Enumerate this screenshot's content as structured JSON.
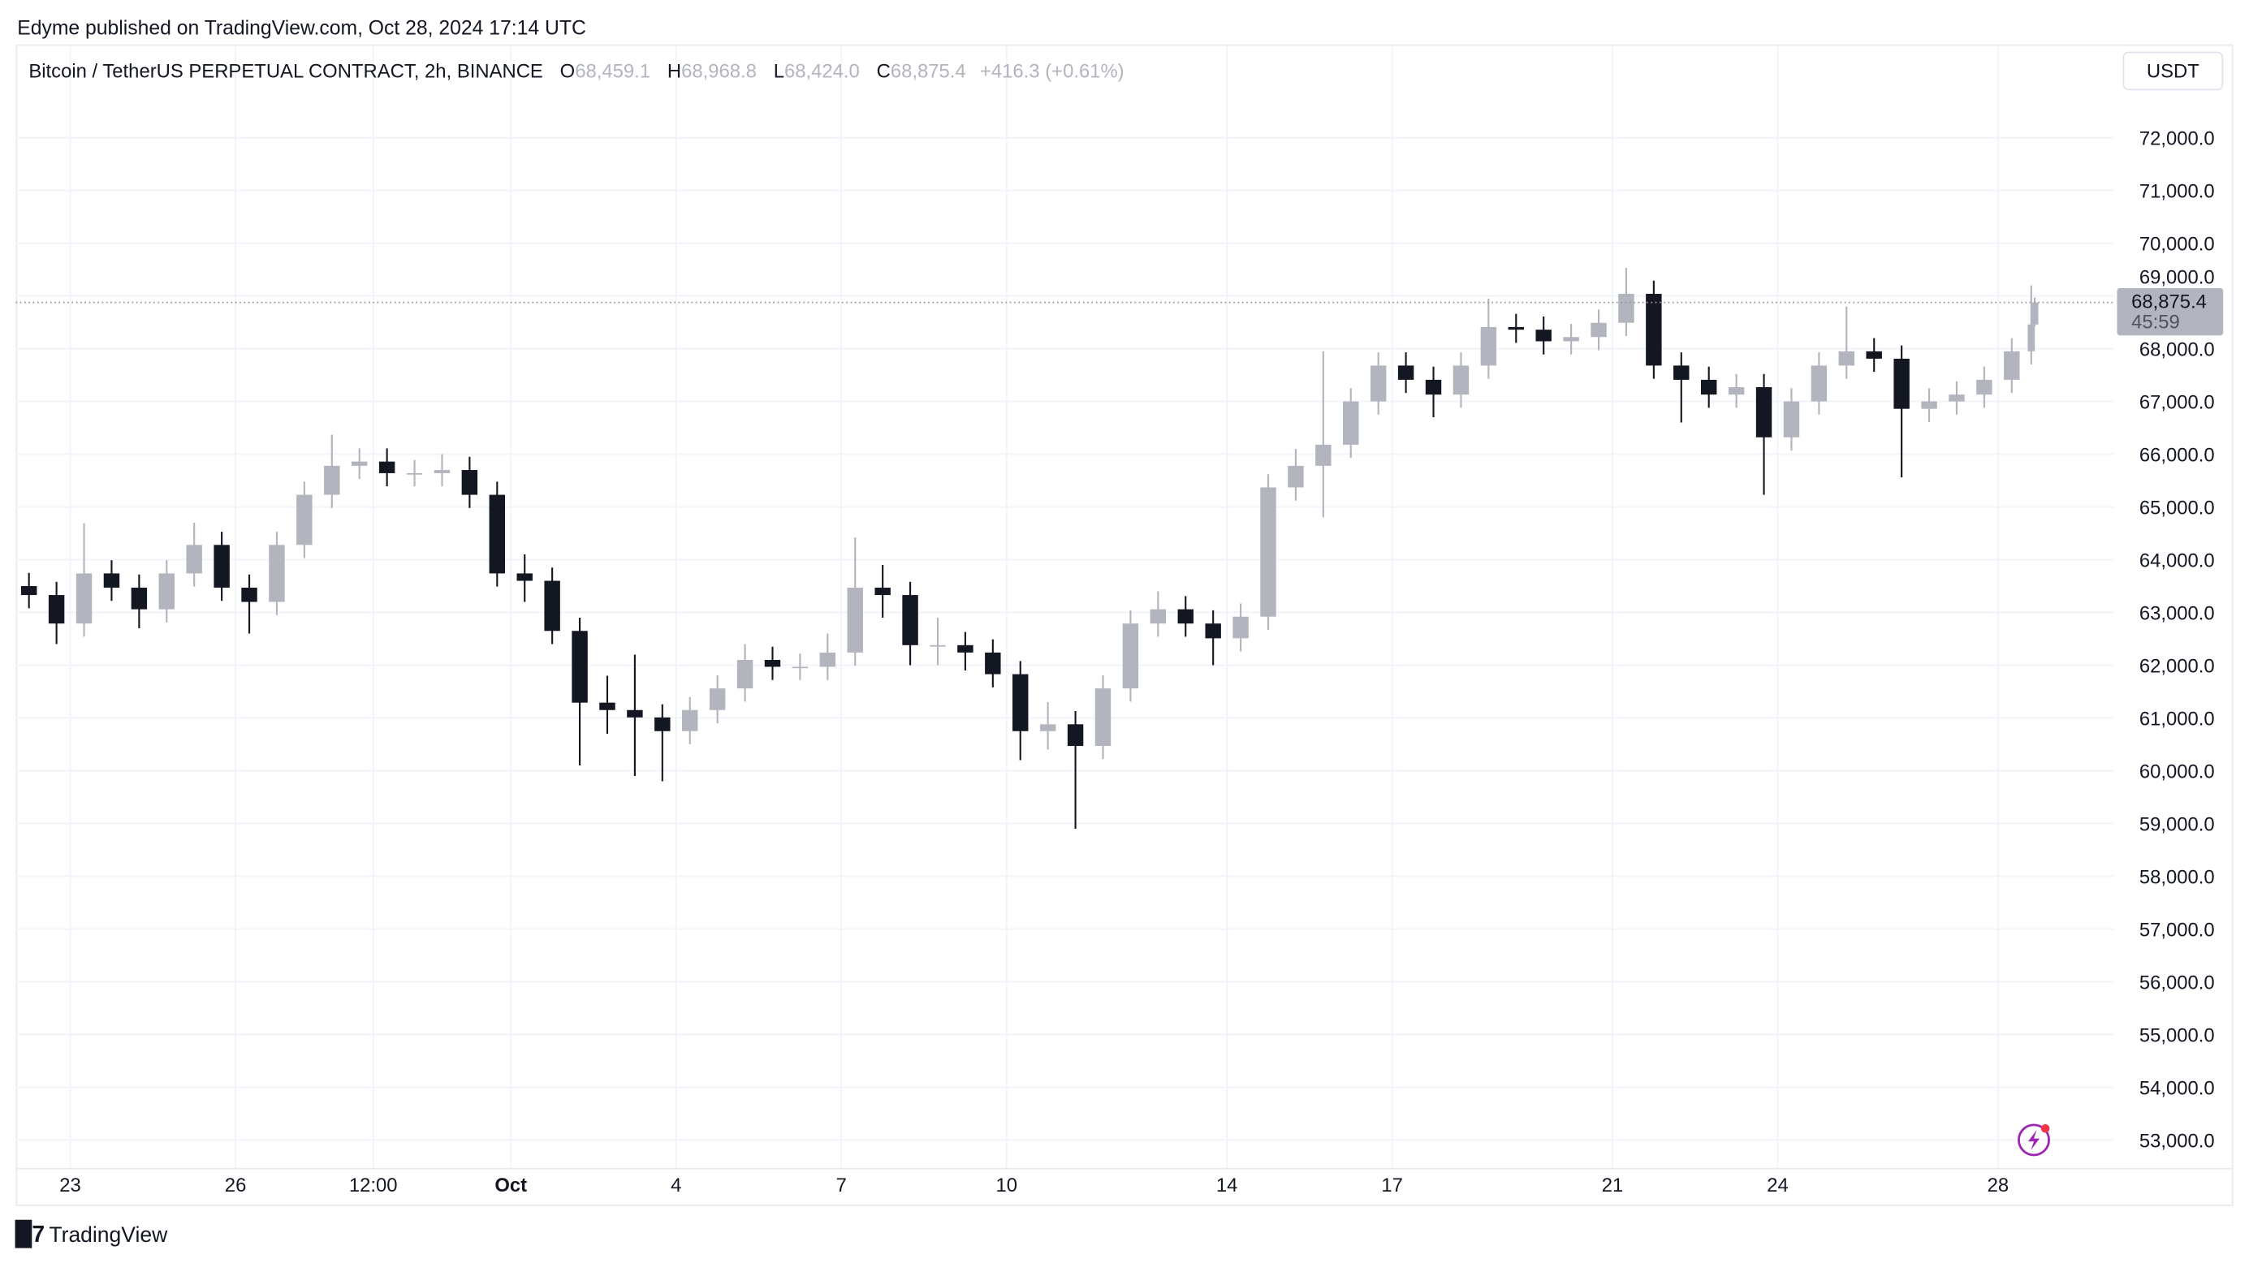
{
  "published": "Edyme published on TradingView.com, Oct 28, 2024 17:14 UTC",
  "legend": {
    "symbol": "Bitcoin / TetherUS PERPETUAL CONTRACT, 2h, BINANCE",
    "o_label": "O",
    "o": "68,459.1",
    "h_label": "H",
    "h": "68,968.8",
    "l_label": "L",
    "l": "68,424.0",
    "c_label": "C",
    "c": "68,875.4",
    "change": "+416.3 (+0.61%)"
  },
  "currency_button": "USDT",
  "last_price_label": {
    "price": "68,875.4",
    "countdown": "45:59"
  },
  "footer_brand": "TradingView",
  "icons": {
    "logo": "tradingview-logo-icon",
    "lightning": "lightning-icon"
  },
  "colors": {
    "up": "#b2b5be",
    "down": "#131722",
    "price_tag": "#b2b5be",
    "grid": "#f0f3fa",
    "lightning": "#9c27b0",
    "alert_dot": "#f23645"
  },
  "chart_data": {
    "type": "candlestick",
    "title": "Bitcoin / TetherUS PERPETUAL CONTRACT, 2h, BINANCE",
    "interval": "2h",
    "note_values_approximate": true,
    "y_axis": {
      "side": "right",
      "range": [
        52600,
        73000
      ],
      "ticks": [
        "72,000.0",
        "71,000.0",
        "70,000.0",
        "69,000.0",
        "68,000.0",
        "67,000.0",
        "66,000.0",
        "65,000.0",
        "64,000.0",
        "63,000.0",
        "62,000.0",
        "61,000.0",
        "60,000.0",
        "59,000.0",
        "58,000.0",
        "57,000.0",
        "56,000.0",
        "55,000.0",
        "54,000.0",
        "53,000.0"
      ],
      "tick_values": [
        72000,
        71000,
        70000,
        69000,
        68000,
        67000,
        66000,
        65000,
        64000,
        63000,
        62000,
        61000,
        60000,
        59000,
        58000,
        57000,
        56000,
        55000,
        54000,
        53000
      ]
    },
    "x_axis": {
      "ticks": [
        {
          "label": "23",
          "t": "2024-09-23T00:00",
          "bold": false
        },
        {
          "label": "26",
          "t": "2024-09-26T00:00",
          "bold": false
        },
        {
          "label": "12:00",
          "t": "2024-09-28T12:00",
          "bold": false
        },
        {
          "label": "Oct",
          "t": "2024-10-01T00:00",
          "bold": true
        },
        {
          "label": "4",
          "t": "2024-10-04T00:00",
          "bold": false
        },
        {
          "label": "7",
          "t": "2024-10-07T00:00",
          "bold": false
        },
        {
          "label": "10",
          "t": "2024-10-10T00:00",
          "bold": false
        },
        {
          "label": "14",
          "t": "2024-10-14T00:00",
          "bold": false
        },
        {
          "label": "17",
          "t": "2024-10-17T00:00",
          "bold": false
        },
        {
          "label": "21",
          "t": "2024-10-21T00:00",
          "bold": false
        },
        {
          "label": "24",
          "t": "2024-10-24T00:00",
          "bold": false
        },
        {
          "label": "28",
          "t": "2024-10-28T00:00",
          "bold": false
        }
      ]
    },
    "grid": true,
    "last_price": 68875.4,
    "candles_columns": [
      "time",
      "open",
      "high",
      "low",
      "close"
    ],
    "candles": [
      [
        "2024-09-22T00:00",
        63500,
        63750,
        63080,
        63330
      ],
      [
        "2024-09-22T12:00",
        63330,
        63580,
        62400,
        62790
      ],
      [
        "2024-09-23T00:00",
        62790,
        64690,
        62540,
        63740
      ],
      [
        "2024-09-23T12:00",
        63740,
        63990,
        63220,
        63470
      ],
      [
        "2024-09-24T00:00",
        63470,
        63720,
        62700,
        63060
      ],
      [
        "2024-09-24T12:00",
        63060,
        63990,
        62810,
        63740
      ],
      [
        "2024-09-25T00:00",
        63740,
        64700,
        63490,
        64280
      ],
      [
        "2024-09-25T12:00",
        64280,
        64530,
        63220,
        63470
      ],
      [
        "2024-09-26T00:00",
        63470,
        63720,
        62600,
        63200
      ],
      [
        "2024-09-26T12:00",
        63200,
        64530,
        62950,
        64280
      ],
      [
        "2024-09-27T00:00",
        64280,
        65480,
        64030,
        65230
      ],
      [
        "2024-09-27T12:00",
        65230,
        66370,
        64980,
        65780
      ],
      [
        "2024-09-28T00:00",
        65780,
        66110,
        65530,
        65860
      ],
      [
        "2024-09-28T12:00",
        65860,
        66110,
        65390,
        65640
      ],
      [
        "2024-09-29T00:00",
        65640,
        65890,
        65390,
        65640
      ],
      [
        "2024-09-29T12:00",
        65640,
        66000,
        65390,
        65700
      ],
      [
        "2024-09-30T00:00",
        65700,
        65950,
        64980,
        65230
      ],
      [
        "2024-09-30T12:00",
        65230,
        65480,
        63490,
        63740
      ],
      [
        "2024-10-01T00:00",
        63740,
        64100,
        63200,
        63600
      ],
      [
        "2024-10-01T12:00",
        63600,
        63850,
        62400,
        62650
      ],
      [
        "2024-10-02T00:00",
        62650,
        62900,
        60100,
        61290
      ],
      [
        "2024-10-02T12:00",
        61290,
        61800,
        60700,
        61150
      ],
      [
        "2024-10-03T00:00",
        61150,
        62200,
        59900,
        61010
      ],
      [
        "2024-10-03T12:00",
        61010,
        61260,
        59800,
        60750
      ],
      [
        "2024-10-04T00:00",
        60750,
        61400,
        60500,
        61150
      ],
      [
        "2024-10-04T12:00",
        61150,
        61810,
        60900,
        61560
      ],
      [
        "2024-10-05T00:00",
        61560,
        62400,
        61310,
        62100
      ],
      [
        "2024-10-05T12:00",
        62100,
        62350,
        61720,
        61970
      ],
      [
        "2024-10-06T00:00",
        61970,
        62220,
        61720,
        61970
      ],
      [
        "2024-10-06T12:00",
        61970,
        62600,
        61720,
        62240
      ],
      [
        "2024-10-07T00:00",
        62240,
        64420,
        61990,
        63470
      ],
      [
        "2024-10-07T12:00",
        63470,
        63900,
        62900,
        63330
      ],
      [
        "2024-10-08T00:00",
        63330,
        63580,
        62000,
        62380
      ],
      [
        "2024-10-08T12:00",
        62380,
        62900,
        62000,
        62380
      ],
      [
        "2024-10-09T00:00",
        62380,
        62630,
        61900,
        62240
      ],
      [
        "2024-10-09T12:00",
        62240,
        62490,
        61580,
        61830
      ],
      [
        "2024-10-10T00:00",
        61830,
        62080,
        60200,
        60750
      ],
      [
        "2024-10-10T12:00",
        60750,
        61300,
        60400,
        60880
      ],
      [
        "2024-10-11T00:00",
        60880,
        61130,
        58900,
        60470
      ],
      [
        "2024-10-11T12:00",
        60470,
        61810,
        60220,
        61560
      ],
      [
        "2024-10-12T00:00",
        61560,
        63040,
        61310,
        62790
      ],
      [
        "2024-10-12T12:00",
        62790,
        63400,
        62540,
        63060
      ],
      [
        "2024-10-13T00:00",
        63060,
        63310,
        62540,
        62790
      ],
      [
        "2024-10-13T12:00",
        62790,
        63040,
        62000,
        62510
      ],
      [
        "2024-10-14T00:00",
        62510,
        63170,
        62260,
        62920
      ],
      [
        "2024-10-14T12:00",
        62920,
        65620,
        62670,
        65370
      ],
      [
        "2024-10-15T00:00",
        65370,
        66100,
        65120,
        65780
      ],
      [
        "2024-10-15T12:00",
        65780,
        67950,
        64800,
        66180
      ],
      [
        "2024-10-16T00:00",
        66180,
        67250,
        65930,
        67000
      ],
      [
        "2024-10-16T12:00",
        67000,
        67930,
        66750,
        67680
      ],
      [
        "2024-10-17T00:00",
        67680,
        67930,
        67160,
        67410
      ],
      [
        "2024-10-17T12:00",
        67410,
        67660,
        66700,
        67130
      ],
      [
        "2024-10-18T00:00",
        67130,
        67930,
        66880,
        67680
      ],
      [
        "2024-10-18T12:00",
        67680,
        68950,
        67430,
        68410
      ],
      [
        "2024-10-19T00:00",
        68410,
        68660,
        68110,
        68360
      ],
      [
        "2024-10-19T12:00",
        68360,
        68610,
        67890,
        68140
      ],
      [
        "2024-10-20T00:00",
        68140,
        68470,
        67890,
        68220
      ],
      [
        "2024-10-20T12:00",
        68220,
        68740,
        67970,
        68490
      ],
      [
        "2024-10-21T00:00",
        68490,
        69530,
        68240,
        69040
      ],
      [
        "2024-10-21T12:00",
        69040,
        69290,
        67430,
        67680
      ],
      [
        "2024-10-22T00:00",
        67680,
        67930,
        66600,
        67410
      ],
      [
        "2024-10-22T12:00",
        67410,
        67660,
        66880,
        67130
      ],
      [
        "2024-10-23T00:00",
        67130,
        67520,
        66880,
        67270
      ],
      [
        "2024-10-23T12:00",
        67270,
        67520,
        65230,
        66320
      ],
      [
        "2024-10-24T00:00",
        66320,
        67250,
        66070,
        67000
      ],
      [
        "2024-10-24T12:00",
        67000,
        67930,
        66750,
        67680
      ],
      [
        "2024-10-25T00:00",
        67680,
        68800,
        67430,
        67950
      ],
      [
        "2024-10-25T12:00",
        67950,
        68200,
        67560,
        67810
      ],
      [
        "2024-10-26T00:00",
        67810,
        68060,
        65560,
        66860
      ],
      [
        "2024-10-26T12:00",
        66860,
        67250,
        66610,
        67000
      ],
      [
        "2024-10-27T00:00",
        67000,
        67380,
        66750,
        67130
      ],
      [
        "2024-10-27T12:00",
        67130,
        67660,
        66880,
        67410
      ],
      [
        "2024-10-28T00:00",
        67410,
        68200,
        67160,
        67950
      ],
      [
        "2024-10-28T12:00",
        67950,
        69200,
        67700,
        68459.1
      ],
      [
        "2024-10-28T16:00",
        68459.1,
        68968.8,
        68424.0,
        68875.4
      ]
    ]
  }
}
